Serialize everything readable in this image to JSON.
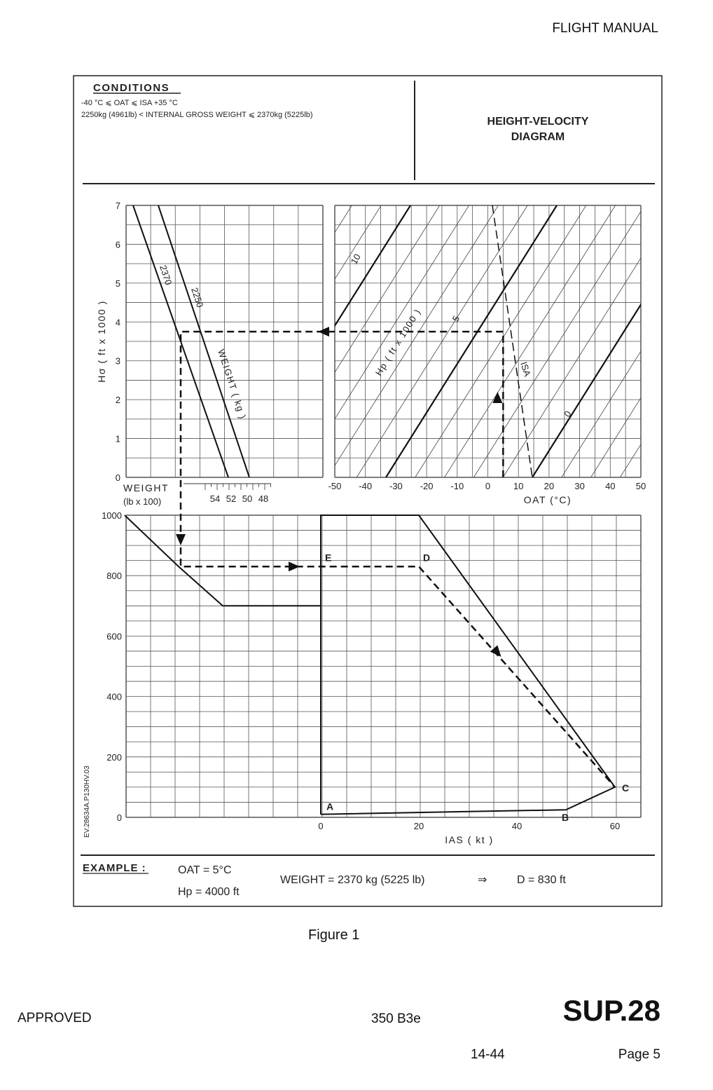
{
  "header": {
    "title": "FLIGHT MANUAL"
  },
  "conditions": {
    "heading": "CONDITIONS",
    "line1": "-40 °C ⩽ OAT ⩽ ISA +35 °C",
    "line2": "2250kg (4961lb) < INTERNAL GROSS WEIGHT ⩽ 2370kg (5225lb)"
  },
  "diagram_title": {
    "line1": "HEIGHT-VELOCITY",
    "line2": "DIAGRAM"
  },
  "chart_data": [
    {
      "type": "line",
      "name": "weight-correction",
      "ylabel": "Hσ ( ft x 1000 )",
      "ylim": [
        0,
        7
      ],
      "yticks": [
        "0",
        "1",
        "2",
        "3",
        "4",
        "5",
        "6",
        "7"
      ],
      "xlabel": "WEIGHT (lb x 100)",
      "xlabel_line1": "WEIGHT",
      "xlabel_line2": "(lb x 100)",
      "xticks": [
        "54",
        "52",
        "50",
        "48"
      ],
      "series": [
        {
          "name": "2370",
          "points": [
            [
              0,
              7
            ],
            [
              1,
              0
            ]
          ]
        },
        {
          "name": "2250",
          "points": [
            [
              0,
              7
            ],
            [
              1,
              0
            ]
          ]
        }
      ],
      "annotation": "WEIGHT ( kg )",
      "grid": true
    },
    {
      "type": "line",
      "name": "density-altitude",
      "xlabel": "OAT (°C)",
      "xlim": [
        -50,
        50
      ],
      "xticks": [
        "-50",
        "-40",
        "-30",
        "-20",
        "-10",
        "0",
        "10",
        "20",
        "30",
        "40",
        "50"
      ],
      "ylim": [
        0,
        7
      ],
      "series_label": "Hp ( ft x 1000 )",
      "series": [
        {
          "name": "10",
          "points": [
            [
              -50,
              4
            ],
            [
              -28.5,
              7
            ]
          ]
        },
        {
          "name": "5",
          "points": [
            [
              -33.3,
              0
            ],
            [
              22.5,
              7
            ]
          ]
        },
        {
          "name": "0",
          "points": [
            [
              14.9,
              0
            ],
            [
              50,
              3.85
            ]
          ]
        },
        {
          "name": "ISA",
          "style": "dashed",
          "points": [
            [
              2,
              7
            ],
            [
              15,
              0
            ]
          ]
        }
      ],
      "grid": true
    },
    {
      "type": "line",
      "name": "height-velocity",
      "xlabel": "IAS ( kt )",
      "xticks": [
        "0",
        "20",
        "40",
        "60"
      ],
      "yticks": [
        "0",
        "200",
        "400",
        "600",
        "800",
        "1000"
      ],
      "ylim": [
        0,
        1000
      ],
      "xlim": [
        -40,
        62
      ],
      "series": [
        {
          "name": "weight-transfer",
          "points": [
            [
              -40,
              1000
            ],
            [
              -29,
              830
            ],
            [
              -20,
              700
            ],
            [
              0,
              700
            ]
          ]
        },
        {
          "name": "avoid-region",
          "points": [
            [
              0,
              10
            ],
            [
              0,
              1000
            ],
            [
              20,
              1000
            ],
            [
              60,
              100
            ],
            [
              50,
              25
            ],
            [
              0,
              10
            ]
          ]
        }
      ],
      "points_labels": [
        {
          "label": "A",
          "ias": 0,
          "height": 10
        },
        {
          "label": "B",
          "ias": 50,
          "height": 25
        },
        {
          "label": "C",
          "ias": 60,
          "height": 100
        },
        {
          "label": "D",
          "ias": 20,
          "height": 830
        },
        {
          "label": "E",
          "ias": 0,
          "height": 830
        }
      ],
      "grid": true
    }
  ],
  "example_path": {
    "oat": 5,
    "hp": 4000,
    "h_sigma": 3.75,
    "d_height": 830
  },
  "reference_code": "EV.28634A.P130HV.03",
  "example": {
    "label": "EXAMPLE :",
    "oat": "OAT = 5°C",
    "hp": "Hp = 4000 ft",
    "weight": "WEIGHT = 2370 kg (5225 lb)",
    "arrow": "⇒",
    "result": "D = 830 ft"
  },
  "caption": "Figure 1",
  "footer": {
    "approved": "APPROVED",
    "model": "350 B3e",
    "supplement": "SUP.28",
    "section": "14-44",
    "page": "Page 5"
  }
}
